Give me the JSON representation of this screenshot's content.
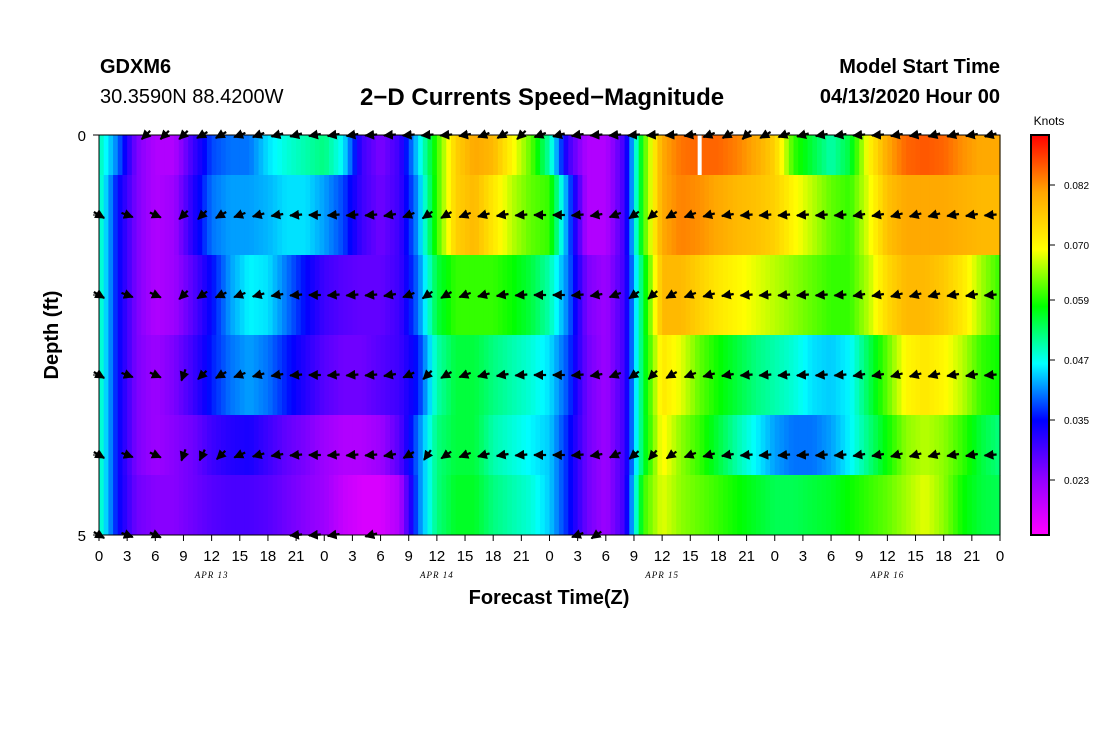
{
  "header": {
    "station": "GDXM6",
    "coords": "30.3590N 88.4200W",
    "title": "2−D Currents Speed−Magnitude",
    "model_start_label": "Model Start Time",
    "model_start_value": "04/13/2020 Hour 00"
  },
  "chart_data": {
    "type": "heatmap",
    "title": "2−D Currents Speed−Magnitude",
    "xlabel": "Forecast Time(Z)",
    "ylabel": "Depth (ft)",
    "x_tick_labels": [
      "0",
      "3",
      "6",
      "9",
      "12",
      "15",
      "18",
      "21",
      "0",
      "3",
      "6",
      "9",
      "12",
      "15",
      "18",
      "21",
      "0",
      "3",
      "6",
      "9",
      "12",
      "15",
      "18",
      "21",
      "0",
      "3",
      "6",
      "9",
      "12",
      "15",
      "18",
      "21",
      "0"
    ],
    "date_labels": [
      "APR 13",
      "APR 14",
      "APR 15",
      "APR 16"
    ],
    "y_tick_labels": [
      "0",
      "5"
    ],
    "ylim": [
      0,
      5
    ],
    "xlim_hours": [
      0,
      96
    ],
    "colorbar": {
      "unit": "Knots",
      "ticks": [
        "0.023",
        "0.035",
        "0.047",
        "0.059",
        "0.070",
        "0.082"
      ],
      "range": [
        0.012,
        0.092
      ],
      "colors": [
        "#ff00ff",
        "#8f00ff",
        "#0000ff",
        "#00ffff",
        "#00ff00",
        "#ffff00",
        "#ffa500",
        "#ff0000"
      ]
    },
    "depth_layers": [
      {
        "depth": 0.0,
        "speed": [
          0.05,
          0.04,
          0.025,
          0.02,
          0.02,
          0.03,
          0.038,
          0.04,
          0.04,
          0.045,
          0.048,
          0.05,
          0.052,
          0.046,
          0.03,
          0.025,
          0.03,
          0.045,
          0.06,
          0.075,
          0.08,
          0.078,
          0.07,
          0.062,
          0.05,
          0.03,
          0.02,
          0.02,
          0.03,
          0.06,
          0.08,
          0.084,
          0.085,
          0.085,
          0.083,
          0.08,
          0.075,
          0.06,
          0.055,
          0.05,
          0.055,
          0.07,
          0.08,
          0.085,
          0.086,
          0.085,
          0.082,
          0.08,
          0.08
        ]
      },
      {
        "depth": 1.0,
        "speed": [
          0.05,
          0.035,
          0.025,
          0.02,
          0.022,
          0.032,
          0.04,
          0.042,
          0.042,
          0.043,
          0.045,
          0.045,
          0.042,
          0.038,
          0.03,
          0.026,
          0.03,
          0.042,
          0.06,
          0.075,
          0.078,
          0.072,
          0.066,
          0.062,
          0.06,
          0.04,
          0.02,
          0.02,
          0.03,
          0.06,
          0.08,
          0.083,
          0.082,
          0.08,
          0.078,
          0.077,
          0.075,
          0.07,
          0.066,
          0.062,
          0.06,
          0.068,
          0.077,
          0.08,
          0.08,
          0.08,
          0.079,
          0.078,
          0.078
        ]
      },
      {
        "depth": 2.0,
        "speed": [
          0.05,
          0.035,
          0.025,
          0.02,
          0.022,
          0.028,
          0.035,
          0.042,
          0.046,
          0.045,
          0.04,
          0.035,
          0.03,
          0.028,
          0.027,
          0.027,
          0.03,
          0.04,
          0.055,
          0.06,
          0.06,
          0.06,
          0.058,
          0.055,
          0.05,
          0.04,
          0.025,
          0.022,
          0.03,
          0.055,
          0.078,
          0.078,
          0.075,
          0.072,
          0.07,
          0.068,
          0.066,
          0.064,
          0.062,
          0.06,
          0.06,
          0.066,
          0.074,
          0.078,
          0.078,
          0.076,
          0.072,
          0.065,
          0.06
        ]
      },
      {
        "depth": 3.0,
        "speed": [
          0.05,
          0.035,
          0.025,
          0.022,
          0.025,
          0.03,
          0.036,
          0.04,
          0.042,
          0.04,
          0.036,
          0.032,
          0.028,
          0.026,
          0.026,
          0.028,
          0.03,
          0.036,
          0.05,
          0.055,
          0.055,
          0.052,
          0.05,
          0.048,
          0.045,
          0.038,
          0.026,
          0.022,
          0.03,
          0.055,
          0.072,
          0.068,
          0.062,
          0.058,
          0.055,
          0.052,
          0.05,
          0.048,
          0.045,
          0.044,
          0.046,
          0.054,
          0.062,
          0.07,
          0.072,
          0.07,
          0.066,
          0.06,
          0.058
        ]
      },
      {
        "depth": 4.0,
        "speed": [
          0.05,
          0.035,
          0.025,
          0.022,
          0.024,
          0.026,
          0.03,
          0.032,
          0.033,
          0.03,
          0.027,
          0.025,
          0.022,
          0.02,
          0.02,
          0.022,
          0.028,
          0.04,
          0.052,
          0.055,
          0.055,
          0.05,
          0.048,
          0.046,
          0.044,
          0.036,
          0.026,
          0.022,
          0.03,
          0.055,
          0.07,
          0.064,
          0.06,
          0.055,
          0.05,
          0.046,
          0.042,
          0.04,
          0.04,
          0.042,
          0.046,
          0.052,
          0.058,
          0.064,
          0.066,
          0.064,
          0.06,
          0.055,
          0.052
        ]
      },
      {
        "depth": 4.5,
        "speed": [
          0.05,
          0.035,
          0.026,
          0.024,
          0.024,
          0.026,
          0.028,
          0.029,
          0.029,
          0.028,
          0.026,
          0.024,
          0.022,
          0.018,
          0.016,
          0.016,
          0.02,
          0.04,
          0.052,
          0.056,
          0.056,
          0.052,
          0.05,
          0.048,
          0.044,
          0.036,
          0.026,
          0.022,
          0.03,
          0.06,
          0.068,
          0.064,
          0.062,
          0.06,
          0.058,
          0.056,
          0.054,
          0.054,
          0.055,
          0.056,
          0.058,
          0.06,
          0.062,
          0.065,
          0.068,
          0.064,
          0.058,
          0.055,
          0.054
        ]
      }
    ],
    "arrows": [
      {
        "depth": 0,
        "hours": [
          5,
          7,
          9,
          11,
          13,
          15,
          17,
          19,
          21,
          23,
          25,
          27,
          29,
          31,
          33,
          35,
          37,
          39,
          41,
          43,
          45,
          47,
          49,
          51,
          53,
          55,
          57,
          59,
          61,
          63,
          65,
          67,
          69,
          71,
          73,
          75,
          77,
          79,
          81,
          83,
          85,
          87,
          89,
          91,
          93,
          95
        ],
        "angles": [
          225,
          225,
          225,
          210,
          210,
          200,
          200,
          195,
          195,
          190,
          190,
          190,
          185,
          185,
          185,
          185,
          185,
          190,
          200,
          210,
          225,
          200,
          195,
          190,
          185,
          185,
          185,
          185,
          185,
          190,
          200,
          210,
          225,
          210,
          200,
          195,
          190,
          190,
          185,
          185,
          190,
          190,
          195,
          195,
          190,
          195
        ]
      },
      {
        "depth": 1,
        "hours": [
          0,
          3,
          6,
          9,
          11,
          13,
          15,
          17,
          19,
          21,
          23,
          25,
          27,
          29,
          31,
          33,
          35,
          37,
          39,
          41,
          43,
          45,
          47,
          49,
          51,
          53,
          55,
          57,
          59,
          61,
          63,
          65,
          67,
          69,
          71,
          73,
          75,
          77,
          79,
          81,
          83,
          85,
          87,
          89,
          91,
          93,
          95
        ],
        "angles": [
          330,
          340,
          335,
          225,
          225,
          210,
          200,
          195,
          190,
          185,
          180,
          185,
          185,
          185,
          190,
          200,
          215,
          210,
          200,
          195,
          190,
          185,
          180,
          180,
          185,
          190,
          200,
          215,
          220,
          210,
          200,
          195,
          190,
          185,
          185,
          185,
          185,
          185,
          185,
          190,
          190,
          195,
          195,
          195,
          190,
          190,
          185
        ]
      },
      {
        "depth": 2,
        "hours": [
          0,
          3,
          6,
          9,
          11,
          13,
          15,
          17,
          19,
          21,
          23,
          25,
          27,
          29,
          31,
          33,
          35,
          37,
          39,
          41,
          43,
          45,
          47,
          49,
          51,
          53,
          55,
          57,
          59,
          61,
          63,
          65,
          67,
          69,
          71,
          73,
          75,
          77,
          79,
          81,
          83,
          85,
          87,
          89,
          91,
          93,
          95
        ],
        "angles": [
          330,
          340,
          335,
          225,
          215,
          205,
          200,
          195,
          190,
          185,
          180,
          185,
          185,
          185,
          190,
          200,
          215,
          210,
          200,
          195,
          190,
          185,
          180,
          180,
          185,
          190,
          200,
          215,
          220,
          210,
          200,
          195,
          190,
          185,
          185,
          185,
          185,
          185,
          185,
          190,
          190,
          195,
          195,
          195,
          190,
          190,
          185
        ]
      },
      {
        "depth": 3,
        "hours": [
          0,
          3,
          6,
          9,
          11,
          13,
          15,
          17,
          19,
          21,
          23,
          25,
          27,
          29,
          31,
          33,
          35,
          37,
          39,
          41,
          43,
          45,
          47,
          49,
          51,
          53,
          55,
          57,
          59,
          61,
          63,
          65,
          67,
          69,
          71,
          73,
          75,
          77,
          79,
          81,
          83,
          85,
          87,
          89,
          91,
          93,
          95
        ],
        "angles": [
          330,
          340,
          335,
          250,
          225,
          210,
          200,
          195,
          190,
          185,
          180,
          185,
          185,
          185,
          190,
          205,
          225,
          210,
          200,
          195,
          190,
          185,
          180,
          180,
          185,
          190,
          200,
          215,
          225,
          210,
          200,
          195,
          190,
          185,
          185,
          185,
          185,
          185,
          185,
          190,
          190,
          195,
          195,
          195,
          190,
          190,
          185
        ]
      },
      {
        "depth": 4,
        "hours": [
          0,
          3,
          6,
          9,
          11,
          13,
          15,
          17,
          19,
          21,
          23,
          25,
          27,
          29,
          31,
          33,
          35,
          37,
          39,
          41,
          43,
          45,
          47,
          49,
          51,
          53,
          55,
          57,
          59,
          61,
          63,
          65,
          67,
          69,
          71,
          73,
          75,
          77,
          79,
          81,
          83,
          85,
          87,
          89,
          91,
          93,
          95
        ],
        "angles": [
          330,
          340,
          335,
          250,
          245,
          225,
          205,
          195,
          190,
          185,
          180,
          185,
          185,
          185,
          190,
          210,
          235,
          215,
          200,
          195,
          190,
          185,
          180,
          180,
          185,
          190,
          205,
          220,
          230,
          215,
          200,
          195,
          190,
          185,
          185,
          185,
          185,
          185,
          185,
          190,
          190,
          195,
          195,
          195,
          190,
          190,
          185
        ]
      },
      {
        "depth": 5,
        "hours": [
          0,
          3,
          6,
          21,
          23,
          25,
          29,
          51,
          53
        ],
        "angles": [
          330,
          340,
          335,
          185,
          185,
          190,
          195,
          200,
          215
        ]
      }
    ],
    "marker": {
      "hour": 64,
      "depth_from": 0,
      "depth_to": 0.5,
      "color": "#ffffff"
    }
  }
}
